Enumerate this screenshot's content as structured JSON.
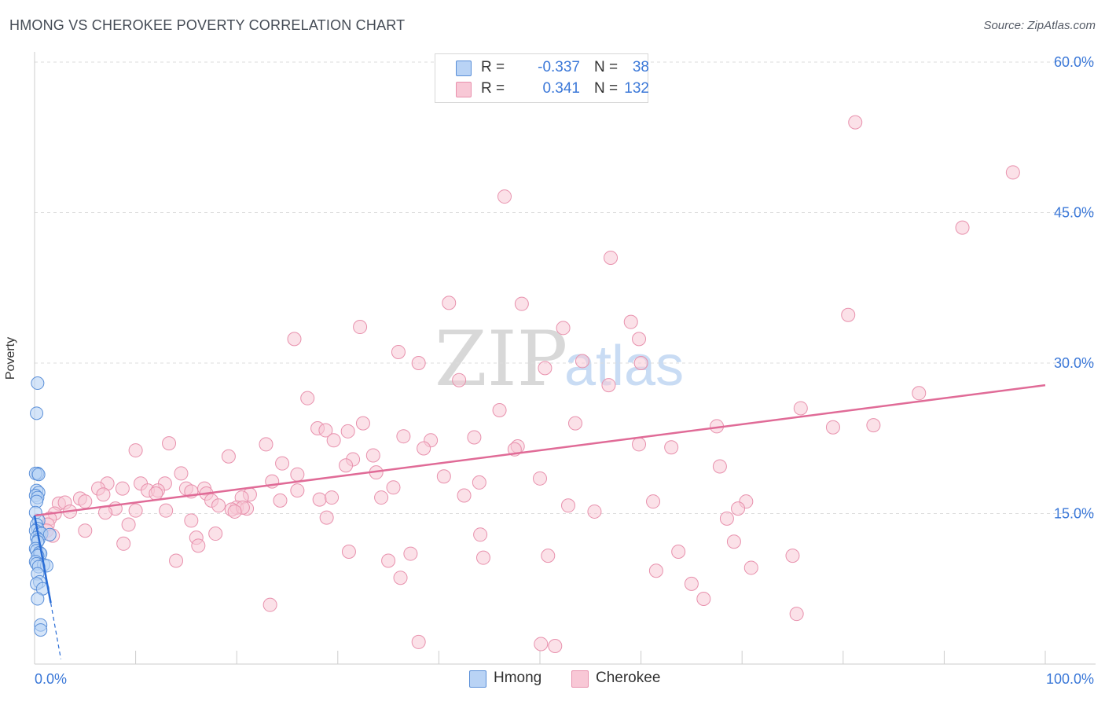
{
  "header": {
    "title": "HMONG VS CHEROKEE POVERTY CORRELATION CHART",
    "source": "Source: ZipAtlas.com"
  },
  "legend": {
    "hmong": {
      "r_label": "R =",
      "r_value": "-0.337",
      "n_label": "N =",
      "n_value": "38"
    },
    "cherokee": {
      "r_label": "R =",
      "r_value": "0.341",
      "n_label": "N =",
      "n_value": "132"
    }
  },
  "bottom_legend": {
    "hmong": "Hmong",
    "cherokee": "Cherokee"
  },
  "watermark": {
    "zip": "ZIP",
    "atlas": "atlas"
  },
  "colors": {
    "hmong_fill": "#b9d3f5",
    "hmong_stroke": "#5a8fd8",
    "hmong_line": "#2a6dd6",
    "cherokee_fill": "#f8c8d6",
    "cherokee_stroke": "#e891ad",
    "cherokee_line": "#e06b97",
    "tick_label": "#3b78d8",
    "grid": "#dcdcdc"
  },
  "chart_data": {
    "type": "scatter",
    "title": "HMONG VS CHEROKEE POVERTY CORRELATION CHART",
    "xlabel": "",
    "ylabel": "Poverty",
    "xlim": [
      0,
      100
    ],
    "ylim": [
      0,
      60
    ],
    "x_tick_labels": [
      "0.0%",
      "100.0%"
    ],
    "y_ticks": [
      15,
      30,
      45,
      60
    ],
    "y_tick_labels": [
      "15.0%",
      "30.0%",
      "45.0%",
      "60.0%"
    ],
    "grid": "dashed horizontal",
    "legend_position": "top-center",
    "series": [
      {
        "name": "Hmong",
        "r": -0.337,
        "n": 38,
        "trendline": {
          "x": [
            0,
            1.6
          ],
          "y": [
            14.8,
            6.1
          ]
        },
        "trendline_extension": {
          "x": [
            1.6,
            2.6
          ],
          "y": [
            6.1,
            0.5
          ]
        },
        "points": [
          [
            0.3,
            28.0
          ],
          [
            0.2,
            25.0
          ],
          [
            0.3,
            19.0
          ],
          [
            0.1,
            19.0
          ],
          [
            0.4,
            18.9
          ],
          [
            0.2,
            17.3
          ],
          [
            0.4,
            17.1
          ],
          [
            0.1,
            16.8
          ],
          [
            0.3,
            16.6
          ],
          [
            0.2,
            16.2
          ],
          [
            0.1,
            15.1
          ],
          [
            0.4,
            14.3
          ],
          [
            0.2,
            13.9
          ],
          [
            0.3,
            13.5
          ],
          [
            0.1,
            13.3
          ],
          [
            0.5,
            13.1
          ],
          [
            0.7,
            13.0
          ],
          [
            1.5,
            12.9
          ],
          [
            0.2,
            12.6
          ],
          [
            0.4,
            12.4
          ],
          [
            0.3,
            12.2
          ],
          [
            0.1,
            11.5
          ],
          [
            0.2,
            11.3
          ],
          [
            0.5,
            11.1
          ],
          [
            0.6,
            11.0
          ],
          [
            0.3,
            10.8
          ],
          [
            0.1,
            10.2
          ],
          [
            0.2,
            10.0
          ],
          [
            0.9,
            9.9
          ],
          [
            1.2,
            9.8
          ],
          [
            0.4,
            9.7
          ],
          [
            0.3,
            9.0
          ],
          [
            0.5,
            8.2
          ],
          [
            0.2,
            8.0
          ],
          [
            0.8,
            7.5
          ],
          [
            0.3,
            6.5
          ],
          [
            0.6,
            3.9
          ],
          [
            0.6,
            3.4
          ]
        ]
      },
      {
        "name": "Cherokee",
        "r": 0.341,
        "n": 132,
        "trendline": {
          "x": [
            0,
            100
          ],
          "y": [
            14.8,
            27.8
          ]
        },
        "points": [
          [
            81.2,
            54.0
          ],
          [
            96.8,
            49.0
          ],
          [
            46.5,
            46.6
          ],
          [
            91.8,
            43.5
          ],
          [
            57.0,
            40.5
          ],
          [
            41.0,
            36.0
          ],
          [
            48.2,
            35.9
          ],
          [
            80.5,
            34.8
          ],
          [
            59.0,
            34.1
          ],
          [
            32.2,
            33.6
          ],
          [
            52.3,
            33.5
          ],
          [
            25.7,
            32.4
          ],
          [
            59.8,
            32.4
          ],
          [
            36.0,
            31.1
          ],
          [
            54.2,
            30.2
          ],
          [
            38.0,
            30.0
          ],
          [
            60.0,
            30.0
          ],
          [
            50.5,
            29.5
          ],
          [
            42.0,
            28.3
          ],
          [
            56.8,
            27.8
          ],
          [
            87.5,
            27.0
          ],
          [
            27.0,
            26.5
          ],
          [
            75.8,
            25.5
          ],
          [
            46.0,
            25.3
          ],
          [
            32.5,
            24.0
          ],
          [
            53.5,
            24.0
          ],
          [
            83.0,
            23.8
          ],
          [
            79.0,
            23.6
          ],
          [
            28.0,
            23.5
          ],
          [
            67.5,
            23.7
          ],
          [
            28.8,
            23.3
          ],
          [
            31.0,
            23.2
          ],
          [
            36.5,
            22.7
          ],
          [
            43.5,
            22.6
          ],
          [
            29.6,
            22.3
          ],
          [
            39.2,
            22.3
          ],
          [
            13.3,
            22.0
          ],
          [
            22.9,
            21.9
          ],
          [
            59.8,
            21.9
          ],
          [
            63.0,
            21.6
          ],
          [
            38.5,
            21.5
          ],
          [
            47.8,
            21.7
          ],
          [
            47.5,
            21.4
          ],
          [
            10.0,
            21.3
          ],
          [
            19.2,
            20.7
          ],
          [
            33.5,
            20.8
          ],
          [
            31.5,
            20.4
          ],
          [
            24.5,
            20.0
          ],
          [
            30.8,
            19.8
          ],
          [
            67.8,
            19.7
          ],
          [
            33.8,
            19.1
          ],
          [
            14.5,
            19.0
          ],
          [
            26.0,
            18.9
          ],
          [
            40.5,
            18.7
          ],
          [
            50.0,
            18.5
          ],
          [
            44.0,
            18.1
          ],
          [
            7.2,
            18.0
          ],
          [
            10.5,
            18.0
          ],
          [
            12.9,
            18.0
          ],
          [
            23.5,
            18.2
          ],
          [
            35.5,
            17.6
          ],
          [
            6.3,
            17.5
          ],
          [
            8.7,
            17.5
          ],
          [
            11.2,
            17.3
          ],
          [
            15.0,
            17.5
          ],
          [
            15.5,
            17.2
          ],
          [
            16.8,
            17.5
          ],
          [
            26.0,
            17.3
          ],
          [
            12.2,
            17.3
          ],
          [
            12.0,
            17.0
          ],
          [
            17.0,
            17.0
          ],
          [
            21.3,
            16.9
          ],
          [
            42.5,
            16.8
          ],
          [
            4.5,
            16.5
          ],
          [
            6.8,
            16.9
          ],
          [
            20.5,
            16.6
          ],
          [
            28.2,
            16.4
          ],
          [
            29.4,
            16.6
          ],
          [
            34.3,
            16.6
          ],
          [
            5.0,
            16.2
          ],
          [
            17.5,
            16.3
          ],
          [
            24.3,
            16.3
          ],
          [
            61.2,
            16.2
          ],
          [
            70.4,
            16.2
          ],
          [
            2.4,
            16.0
          ],
          [
            3.0,
            16.1
          ],
          [
            18.2,
            15.8
          ],
          [
            20.0,
            15.6
          ],
          [
            21.0,
            15.5
          ],
          [
            8.0,
            15.5
          ],
          [
            13.0,
            15.3
          ],
          [
            19.5,
            15.4
          ],
          [
            20.6,
            15.6
          ],
          [
            3.5,
            15.2
          ],
          [
            10.0,
            15.3
          ],
          [
            52.8,
            15.8
          ],
          [
            55.4,
            15.2
          ],
          [
            69.6,
            15.5
          ],
          [
            2.0,
            15.0
          ],
          [
            19.8,
            15.2
          ],
          [
            7.0,
            15.1
          ],
          [
            1.5,
            14.5
          ],
          [
            15.5,
            14.3
          ],
          [
            28.9,
            14.6
          ],
          [
            68.5,
            14.5
          ],
          [
            9.3,
            13.9
          ],
          [
            1.3,
            13.9
          ],
          [
            1.2,
            13.3
          ],
          [
            5.0,
            13.3
          ],
          [
            17.9,
            13.0
          ],
          [
            44.1,
            12.9
          ],
          [
            1.8,
            12.8
          ],
          [
            16.0,
            12.6
          ],
          [
            69.2,
            12.2
          ],
          [
            8.8,
            12.0
          ],
          [
            16.2,
            11.8
          ],
          [
            31.1,
            11.2
          ],
          [
            63.7,
            11.2
          ],
          [
            37.2,
            11.0
          ],
          [
            50.8,
            10.8
          ],
          [
            44.4,
            10.6
          ],
          [
            75.0,
            10.8
          ],
          [
            35.0,
            10.3
          ],
          [
            14.0,
            10.3
          ],
          [
            70.9,
            9.6
          ],
          [
            61.5,
            9.3
          ],
          [
            36.2,
            8.6
          ],
          [
            65.0,
            8.0
          ],
          [
            66.2,
            6.5
          ],
          [
            23.3,
            5.9
          ],
          [
            75.4,
            5.0
          ],
          [
            38.0,
            2.2
          ],
          [
            50.1,
            2.0
          ],
          [
            51.5,
            1.8
          ]
        ]
      }
    ]
  }
}
